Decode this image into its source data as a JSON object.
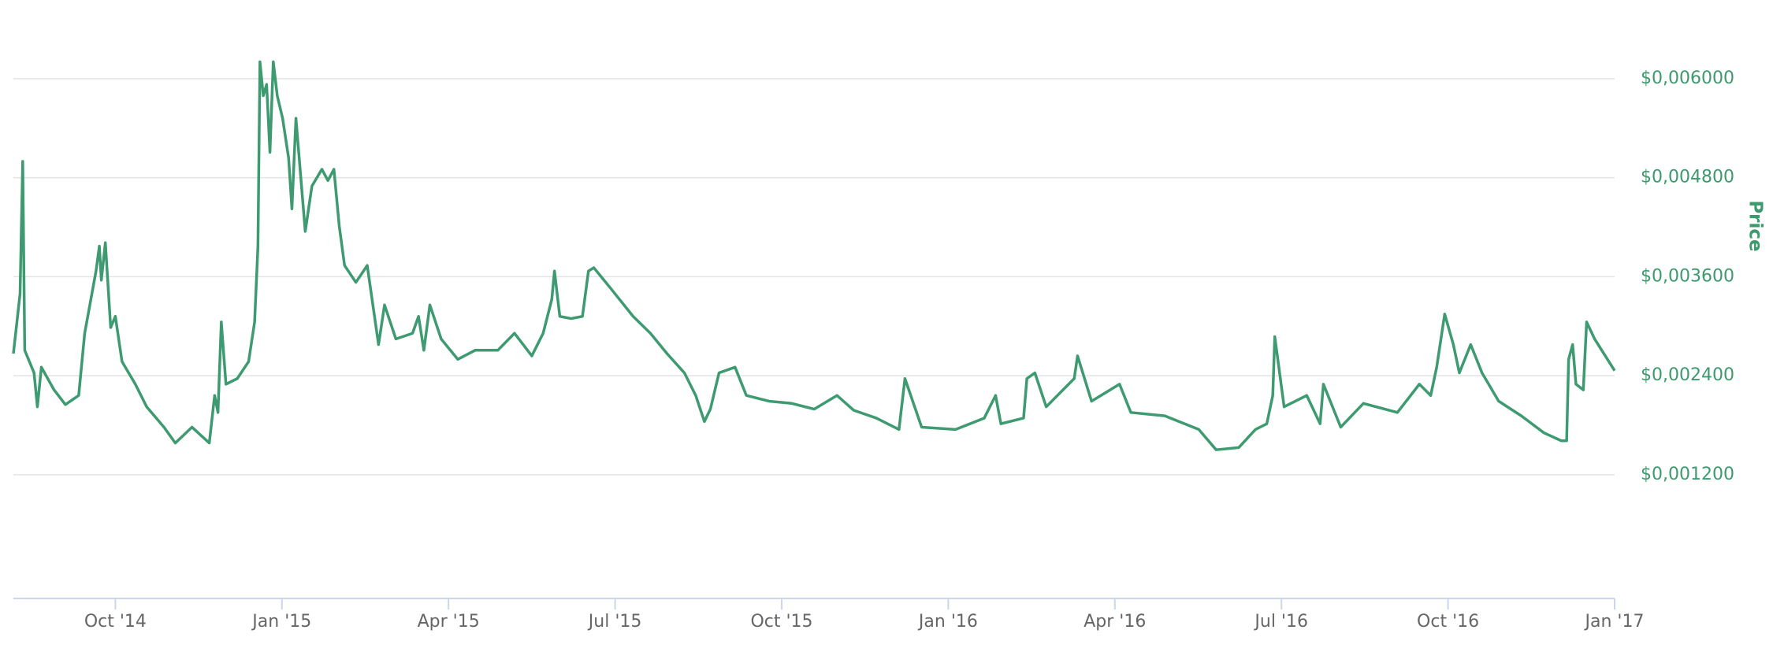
{
  "chart_data": {
    "type": "line",
    "y_label": "Price",
    "color": "#3e9a70",
    "grid": true,
    "y_axis_side": "right",
    "xlim": [
      2014.597,
      2017.0
    ],
    "xticks": [
      {
        "value": 2014.75,
        "label": "Oct '14"
      },
      {
        "value": 2015.0,
        "label": "Jan '15"
      },
      {
        "value": 2015.25,
        "label": "Apr '15"
      },
      {
        "value": 2015.5,
        "label": "Jul '15"
      },
      {
        "value": 2015.75,
        "label": "Oct '15"
      },
      {
        "value": 2016.0,
        "label": "Jan '16"
      },
      {
        "value": 2016.25,
        "label": "Apr '16"
      },
      {
        "value": 2016.5,
        "label": "Jul '16"
      },
      {
        "value": 2016.75,
        "label": "Oct '16"
      },
      {
        "value": 2017.0,
        "label": "Jan '17"
      }
    ],
    "ylim": [
      -0.0003,
      0.0066
    ],
    "yticks": [
      {
        "value": 0.0012,
        "label": "$0,001200"
      },
      {
        "value": 0.0024,
        "label": "$0,002400"
      },
      {
        "value": 0.0036,
        "label": "$0,003600"
      },
      {
        "value": 0.0048,
        "label": "$0,004800"
      },
      {
        "value": 0.006,
        "label": "$0,006000"
      }
    ],
    "x": [
      2014.597,
      2014.607,
      2014.611,
      2014.614,
      2014.628,
      2014.633,
      2014.639,
      2014.658,
      2014.675,
      2014.695,
      2014.704,
      2014.721,
      2014.726,
      2014.729,
      2014.735,
      2014.743,
      2014.75,
      2014.76,
      2014.78,
      2014.797,
      2014.823,
      2014.84,
      2014.865,
      2014.891,
      2014.899,
      2014.904,
      2014.909,
      2014.916,
      2014.933,
      2014.95,
      2014.959,
      2014.964,
      2014.967,
      2014.972,
      2014.977,
      2014.982,
      2014.987,
      2014.993,
      2015.001,
      2015.01,
      2015.015,
      2015.021,
      2015.035,
      2015.045,
      2015.06,
      2015.069,
      2015.078,
      2015.086,
      2015.094,
      2015.111,
      2015.128,
      2015.145,
      2015.154,
      2015.171,
      2015.196,
      2015.205,
      2015.213,
      2015.222,
      2015.239,
      2015.264,
      2015.29,
      2015.324,
      2015.349,
      2015.375,
      2015.392,
      2015.405,
      2015.409,
      2015.417,
      2015.434,
      2015.451,
      2015.46,
      2015.468,
      2015.493,
      2015.527,
      2015.553,
      2015.578,
      2015.604,
      2015.621,
      2015.634,
      2015.643,
      2015.656,
      2015.68,
      2015.697,
      2015.731,
      2015.765,
      2015.799,
      2015.833,
      2015.858,
      2015.892,
      2015.926,
      2015.935,
      2015.96,
      2016.011,
      2016.054,
      2016.071,
      2016.079,
      2016.113,
      2016.118,
      2016.13,
      2016.147,
      2016.189,
      2016.194,
      2016.215,
      2016.257,
      2016.274,
      2016.325,
      2016.376,
      2016.402,
      2016.436,
      2016.461,
      2016.478,
      2016.487,
      2016.49,
      2016.504,
      2016.538,
      2016.558,
      2016.563,
      2016.589,
      2016.623,
      2016.674,
      2016.707,
      2016.724,
      2016.733,
      2016.745,
      2016.758,
      2016.767,
      2016.784,
      2016.801,
      2016.826,
      2016.86,
      2016.894,
      2016.92,
      2016.928,
      2016.931,
      2016.937,
      2016.942,
      2016.953,
      2016.958,
      2016.97,
      2017.0
    ],
    "values": [
      0.002667,
      0.003394,
      0.004998,
      0.002708,
      0.002434,
      0.002023,
      0.002503,
      0.002228,
      0.00205,
      0.00216,
      0.002914,
      0.003668,
      0.00397,
      0.003558,
      0.004011,
      0.002983,
      0.003119,
      0.002571,
      0.002297,
      0.002023,
      0.001776,
      0.001584,
      0.001776,
      0.001584,
      0.00216,
      0.001954,
      0.003051,
      0.002297,
      0.002365,
      0.002571,
      0.003051,
      0.00397,
      0.006204,
      0.005793,
      0.00593,
      0.005107,
      0.006204,
      0.005793,
      0.005519,
      0.005039,
      0.004422,
      0.005519,
      0.004148,
      0.004697,
      0.004902,
      0.004765,
      0.004902,
      0.004216,
      0.003736,
      0.003531,
      0.003736,
      0.002777,
      0.003257,
      0.002845,
      0.002914,
      0.003119,
      0.002708,
      0.003257,
      0.002845,
      0.002598,
      0.002708,
      0.002708,
      0.002914,
      0.00264,
      0.002914,
      0.003325,
      0.003668,
      0.003119,
      0.003092,
      0.003119,
      0.003668,
      0.003709,
      0.003462,
      0.003119,
      0.002914,
      0.002667,
      0.002434,
      0.00216,
      0.001844,
      0.001995,
      0.002434,
      0.002503,
      0.00216,
      0.002091,
      0.002064,
      0.001995,
      0.00216,
      0.001981,
      0.001886,
      0.001748,
      0.002365,
      0.001776,
      0.001748,
      0.001886,
      0.00216,
      0.001817,
      0.001886,
      0.002365,
      0.002434,
      0.002023,
      0.002365,
      0.00264,
      0.002091,
      0.002297,
      0.001954,
      0.001913,
      0.001748,
      0.001502,
      0.001529,
      0.001748,
      0.001817,
      0.00216,
      0.002873,
      0.002023,
      0.00216,
      0.001817,
      0.002297,
      0.001776,
      0.002064,
      0.001954,
      0.002297,
      0.00216,
      0.002503,
      0.003147,
      0.002777,
      0.002434,
      0.002777,
      0.002434,
      0.002091,
      0.001913,
      0.001707,
      0.001611,
      0.001611,
      0.002598,
      0.002777,
      0.002297,
      0.002228,
      0.003051,
      0.002845,
      0.002461
    ]
  }
}
